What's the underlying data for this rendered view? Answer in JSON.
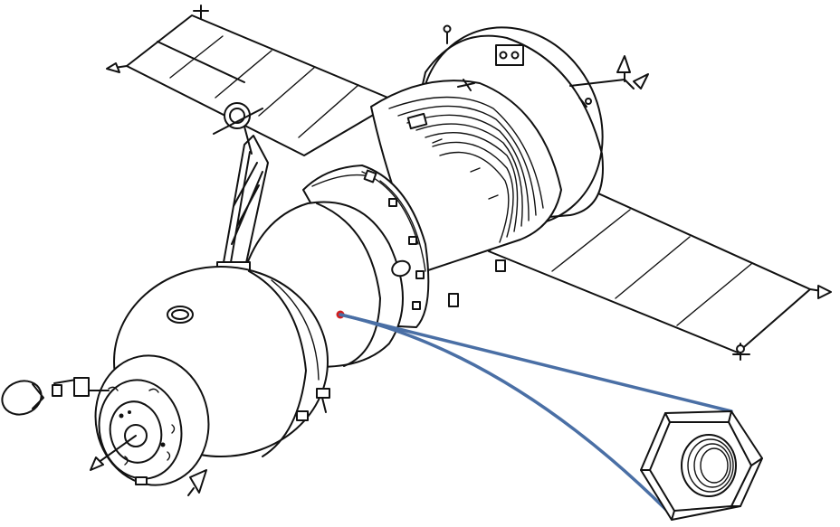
{
  "colors": {
    "line": "#111111",
    "callout": "#4a6fa5",
    "marker": "#d21f1f",
    "background": "#ffffff"
  },
  "diagram": {
    "subject": "spacecraft-line-drawing",
    "callout_detail": "hex-nut-closeup"
  }
}
